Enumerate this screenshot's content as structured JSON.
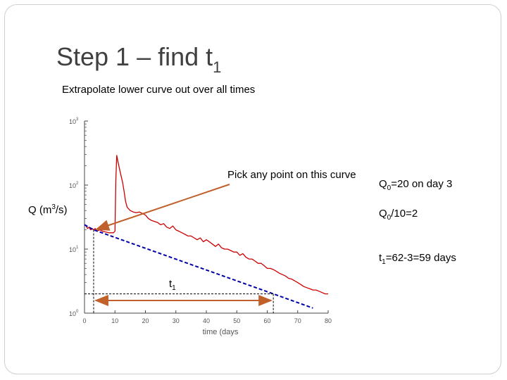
{
  "slide": {
    "title_main": "Step 1 – find t",
    "title_sub": "1",
    "subtitle": "Extrapolate lower curve out over all times"
  },
  "annotations": {
    "ylabel_main": "Q (m",
    "ylabel_sup": "3",
    "ylabel_end": "/s)",
    "pick_point": "Pick any point on this curve",
    "q0_sym": "Q",
    "q0_sub": "0",
    "q0_text": "=20 on day 3",
    "q10_sym": "Q",
    "q10_sub": "0",
    "q10_text": "/10=2",
    "t1_sym": "t",
    "t1_sub": "1",
    "t1_text": "=62-3=59 days",
    "t1_label_sym": "t",
    "t1_label_sub": "1"
  },
  "colors": {
    "hydrograph": "#cc0000",
    "recession": "#0000aa",
    "arrow": "#c0602a",
    "axis": "#444444"
  },
  "chart_data": {
    "type": "line",
    "xlabel": "time (days",
    "ylabel": "Q (m3/s)",
    "xlim": [
      0,
      80
    ],
    "ylim": [
      1,
      1000
    ],
    "yscale": "log",
    "xticks": [
      "0",
      "10",
      "20",
      "30",
      "40",
      "50",
      "60",
      "70",
      "80"
    ],
    "yticks": [
      {
        "base": "10",
        "exp": "0",
        "value": 1
      },
      {
        "base": "10",
        "exp": "1",
        "value": 10
      },
      {
        "base": "10",
        "exp": "2",
        "value": 100
      },
      {
        "base": "10",
        "exp": "3",
        "value": 1000
      }
    ],
    "series": [
      {
        "style": "solid",
        "x": [
          0.5,
          1,
          1.5,
          2,
          2.5,
          3,
          3.5,
          4,
          5,
          6,
          7,
          8,
          9,
          9.5,
          10,
          10.3,
          10.6,
          11,
          11.5,
          12,
          12.5,
          13,
          13.5,
          14,
          15,
          16,
          17,
          18,
          19,
          20,
          21,
          22,
          23,
          24,
          25,
          26,
          27,
          28,
          29,
          30,
          31,
          32,
          33,
          34,
          35,
          36,
          37,
          38,
          39,
          40,
          41,
          42,
          43,
          44,
          45,
          46,
          47,
          48,
          49,
          50,
          51,
          52,
          53,
          54,
          55,
          56,
          57,
          58,
          59,
          60,
          61,
          62,
          63,
          64,
          65,
          66,
          67,
          68,
          69,
          70,
          71,
          72,
          73,
          74,
          75,
          76,
          77,
          78,
          79,
          80
        ],
        "y": [
          23,
          21,
          22,
          20,
          21,
          20,
          21,
          19,
          20,
          19,
          18.5,
          18,
          18,
          18,
          19,
          120,
          290,
          230,
          180,
          140,
          110,
          80,
          55,
          45,
          40,
          38,
          37,
          38,
          36,
          34,
          30,
          28,
          27,
          26,
          24,
          25,
          22,
          21,
          23,
          20,
          19,
          18,
          17,
          16,
          16,
          15,
          14,
          15,
          13,
          14,
          13,
          12,
          11,
          12,
          10.5,
          10,
          10,
          9.5,
          9,
          9,
          8,
          8.5,
          7.5,
          7,
          7,
          6.5,
          6,
          6,
          5.5,
          5,
          5,
          4.8,
          4.5,
          4.2,
          4,
          3.8,
          3.5,
          3.4,
          3.2,
          3,
          2.8,
          2.6,
          2.5,
          2.4,
          2.3,
          2.3,
          2.2,
          2.1,
          2,
          2
        ]
      },
      {
        "style": "dashed",
        "x": [
          0,
          3,
          62,
          75
        ],
        "y": [
          24,
          20,
          2,
          1.2
        ]
      }
    ],
    "markers": {
      "t_start": 3,
      "t_end": 62,
      "q0": 20,
      "q_end": 2
    }
  }
}
